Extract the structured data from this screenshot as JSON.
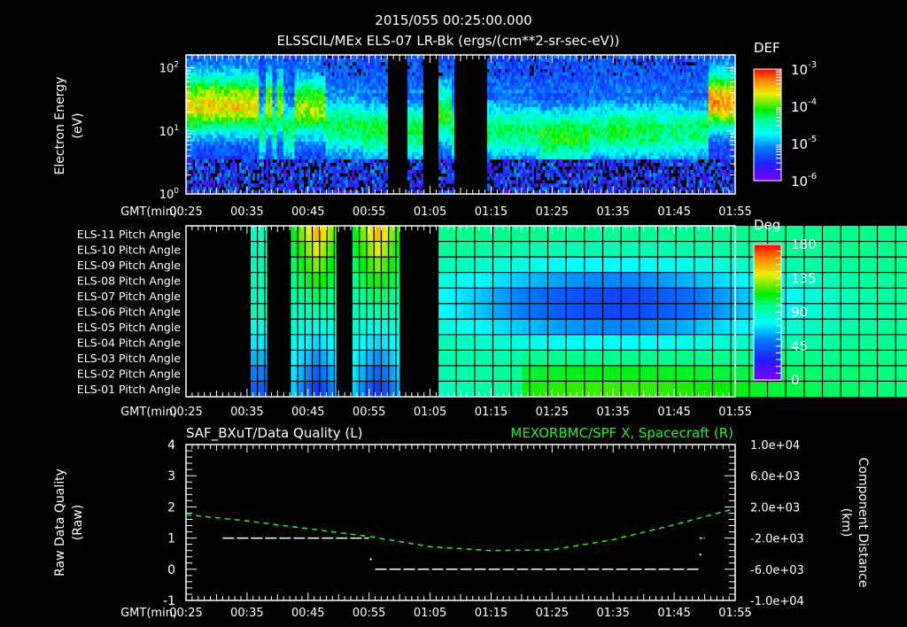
{
  "header": {
    "datetime": "2015/055 00:25:00.000",
    "title": "ELSSCIL/MEx ELS-07 LR-Bk  (ergs/(cm**2-sr-sec-eV))"
  },
  "time_axis": {
    "label": "GMT(min)",
    "ticks": [
      "00:25",
      "00:35",
      "00:45",
      "00:55",
      "01:05",
      "01:15",
      "01:25",
      "01:35",
      "01:45",
      "01:55"
    ]
  },
  "chart_data": [
    {
      "type": "heatmap",
      "id": "spectrogram",
      "title": "ELSSCIL/MEx ELS-07 LR-Bk  (ergs/(cm**2-sr-sec-eV))",
      "ylabel": "Electron Energy",
      "ylabel_units": "(eV)",
      "yscale": "log",
      "ylim": [
        1,
        160
      ],
      "yticks": [
        {
          "label": "10",
          "exp": "0",
          "value": 1
        },
        {
          "label": "10",
          "exp": "1",
          "value": 10
        },
        {
          "label": "10",
          "exp": "2",
          "value": 100
        }
      ],
      "xlim": [
        "00:25",
        "01:55"
      ],
      "colorbar": {
        "title": "DEF",
        "scale": "log",
        "range": [
          1e-06,
          0.001
        ],
        "ticks": [
          {
            "label": "10",
            "exp": "-3"
          },
          {
            "label": "10",
            "exp": "-4"
          },
          {
            "label": "10",
            "exp": "-5"
          },
          {
            "label": "10",
            "exp": "-6"
          }
        ]
      },
      "data_gaps_min": [
        [
          33.2,
          36.3
        ],
        [
          38.7,
          41.5
        ],
        [
          44.0,
          49.3
        ]
      ],
      "features": [
        {
          "t_start": 0,
          "t_end": 33,
          "peak_eV": 25,
          "level": 0.62
        },
        {
          "t_start": 36,
          "t_end": 39,
          "peak_eV": 25,
          "level": 0.58
        },
        {
          "t_start": 41,
          "t_end": 44,
          "peak_eV": 25,
          "level": 0.55
        },
        {
          "t_start": 49,
          "t_end": 63,
          "peak_eV": 22,
          "level": 0.55
        },
        {
          "t_start": 63,
          "t_end": 80,
          "peak_eV": 12,
          "level": 0.4
        },
        {
          "t_start": 80,
          "t_end": 110,
          "peak_eV": 10,
          "level": 0.42
        },
        {
          "t_start": 110,
          "t_end": 120,
          "peak_eV": 18,
          "level": 0.46
        },
        {
          "t_start": 120,
          "t_end": 151,
          "peak_eV": 10,
          "level": 0.38
        },
        {
          "t_start": 160,
          "t_end": 182,
          "peak_eV": 8,
          "level": 0.45
        },
        {
          "t_start": 190,
          "t_end": 213,
          "peak_eV": 10,
          "level": 0.42
        },
        {
          "t_start": 236,
          "t_end": 252,
          "peak_eV": 28,
          "level": 0.68
        }
      ]
    },
    {
      "type": "heatmap",
      "id": "pitch_angle",
      "rows": [
        "ELS-11 Pitch Angle",
        "ELS-10 Pitch Angle",
        "ELS-09 Pitch Angle",
        "ELS-08 Pitch Angle",
        "ELS-07 Pitch Angle",
        "ELS-06 Pitch Angle",
        "ELS-05 Pitch Angle",
        "ELS-04 Pitch Angle",
        "ELS-03 Pitch Angle",
        "ELS-02 Pitch Angle",
        "ELS-01 Pitch Angle"
      ],
      "xlim": [
        "00:25",
        "01:55"
      ],
      "colorbar": {
        "title": "Deg",
        "range": [
          0,
          180
        ],
        "ticks": [
          "180",
          "135",
          "90",
          "45",
          "0"
        ]
      },
      "data_segments_min": [
        [
          10.5,
          13.2
        ],
        [
          17.1,
          24.5
        ],
        [
          27.2,
          34.8
        ],
        [
          41.3,
          150.5
        ]
      ],
      "description": "Pitch angles ~90-100 deg (green) early; after 01:05 central rows (ELS-05..ELS-09) drop to ~20-40 deg (blue) around 01:15-01:30; ELS-01/02 rise to ~110-120 deg (yellow-green)"
    },
    {
      "type": "line",
      "id": "data_quality",
      "title_left": "SAF_BXuT/Data Quality (L)",
      "title_right": "MEXORBMC/SPF X, Spacecraft (R)",
      "ylabel_left": "Raw Data Quality",
      "ylabel_left_units": "(Raw)",
      "ylabel_right": "Component Distance",
      "ylabel_right_units": "(km)",
      "ylim_left": [
        -1,
        4
      ],
      "yticks_left": [
        "4",
        "3",
        "2",
        "1",
        "0",
        "-1"
      ],
      "ylim_right": [
        -10000,
        10000
      ],
      "yticks_right": [
        "1.0e+04",
        "6.0e+03",
        "2.0e+03",
        "-2.0e+03",
        "-6.0e+03",
        "-1.0e+04"
      ],
      "series": [
        {
          "name": "Data Quality (L)",
          "color": "#ffffff",
          "style": "dashed",
          "points": [
            {
              "t": "00:31",
              "v": 1
            },
            {
              "t": "00:55",
              "v": 1
            },
            {
              "t": "00:56",
              "v": 0
            },
            {
              "t": "01:49",
              "v": 0
            },
            {
              "t": "01:50",
              "v": 1
            }
          ]
        },
        {
          "name": "Spacecraft X (R)",
          "color": "#22ee22",
          "style": "dashed",
          "points": [
            {
              "t": "00:25",
              "v": 1000
            },
            {
              "t": "00:35",
              "v": 200
            },
            {
              "t": "00:45",
              "v": -800
            },
            {
              "t": "00:55",
              "v": -1800
            },
            {
              "t": "01:05",
              "v": -3100
            },
            {
              "t": "01:15",
              "v": -3600
            },
            {
              "t": "01:25",
              "v": -3500
            },
            {
              "t": "01:35",
              "v": -2200
            },
            {
              "t": "01:45",
              "v": -300
            },
            {
              "t": "01:55",
              "v": 1800
            }
          ]
        }
      ]
    }
  ]
}
